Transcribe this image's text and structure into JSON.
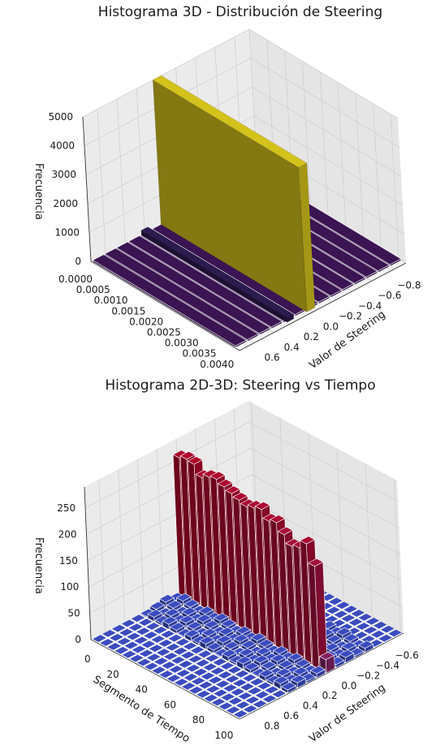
{
  "chart_data": [
    {
      "type": "bar3d",
      "title": "Histograma 3D - Distribución de Steering",
      "xlabel": "Valor de Steering",
      "ylabel": "",
      "zlabel": "Frecuencia",
      "x_ticks": [
        "−0.8",
        "−0.6",
        "−0.4",
        "−0.2",
        "0.0",
        "0.2",
        "0.4",
        "0.6"
      ],
      "y_ticks": [
        "0.0000",
        "0.0005",
        "0.0010",
        "0.0015",
        "0.0020",
        "0.0025",
        "0.0030",
        "0.0035",
        "0.0040"
      ],
      "z_ticks": [
        "0",
        "1000",
        "2000",
        "3000",
        "4000",
        "5000"
      ],
      "xlim": [
        -0.95,
        0.75
      ],
      "ylim": [
        0.0,
        0.0042
      ],
      "zlim": [
        0,
        5000
      ],
      "grid": true,
      "colormap": "viridis",
      "peak": {
        "x": 0.0,
        "value": 5000,
        "color": "#d4c21c"
      },
      "secondary": {
        "x": 0.2,
        "value": 150,
        "color": "#2b1b4e"
      },
      "baseline_color": "#3b1453",
      "edge_color": "#ffffff"
    },
    {
      "type": "bar3d",
      "title": "Histograma 2D-3D: Steering vs Tiempo",
      "xlabel": "Valor de Steering",
      "ylabel": "Segmento de Tiempo",
      "zlabel": "Frecuencia",
      "x_ticks": [
        "−0.6",
        "−0.4",
        "−0.2",
        "0.0",
        "0.2",
        "0.4",
        "0.6",
        "0.8"
      ],
      "y_ticks": [
        "0",
        "20",
        "40",
        "60",
        "80",
        "100"
      ],
      "z_ticks": [
        "0",
        "50",
        "100",
        "150",
        "200",
        "250"
      ],
      "xlim": [
        -0.75,
        0.95
      ],
      "ylim": [
        0,
        100
      ],
      "zlim": [
        0,
        290
      ],
      "grid": true,
      "colormap": "coolwarm",
      "center_x": 0.0,
      "segments": [
        0,
        5,
        10,
        15,
        20,
        25,
        30,
        35,
        40,
        45,
        50,
        55,
        60,
        65,
        70,
        75,
        80,
        85,
        90,
        95
      ],
      "center_values": [
        265,
        270,
        268,
        250,
        258,
        262,
        255,
        250,
        245,
        240,
        245,
        250,
        235,
        240,
        225,
        210,
        215,
        230,
        195,
        25
      ],
      "low_color": "#3b4cc0",
      "high_color": "#b40426"
    }
  ]
}
